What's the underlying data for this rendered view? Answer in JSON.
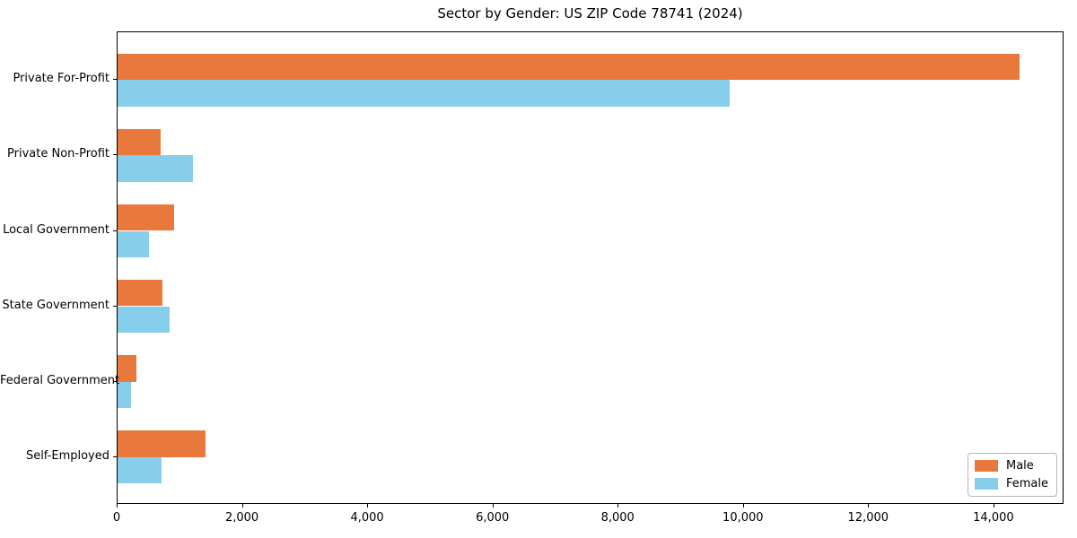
{
  "chart_data": {
    "type": "bar",
    "orientation": "horizontal",
    "title": "Sector by Gender: US ZIP Code 78741 (2024)",
    "categories": [
      "Private For-Profit",
      "Private Non-Profit",
      "Local Government",
      "State Government",
      "Federal Government",
      "Self-Employed"
    ],
    "series": [
      {
        "name": "Male",
        "color": "#e8783c",
        "values": [
          14400,
          690,
          900,
          715,
          300,
          1400
        ]
      },
      {
        "name": "Female",
        "color": "#87ceeb",
        "values": [
          9770,
          1210,
          500,
          825,
          215,
          705
        ]
      }
    ],
    "xlim": [
      0,
      15120
    ],
    "xticks": [
      0,
      2000,
      4000,
      6000,
      8000,
      10000,
      12000,
      14000
    ],
    "xtick_labels": [
      "0",
      "2,000",
      "4,000",
      "6,000",
      "8,000",
      "10,000",
      "12,000",
      "14,000"
    ],
    "grid": false,
    "legend_position": "lower right",
    "background_color": "#ffffff",
    "axis_color": "#000000"
  }
}
